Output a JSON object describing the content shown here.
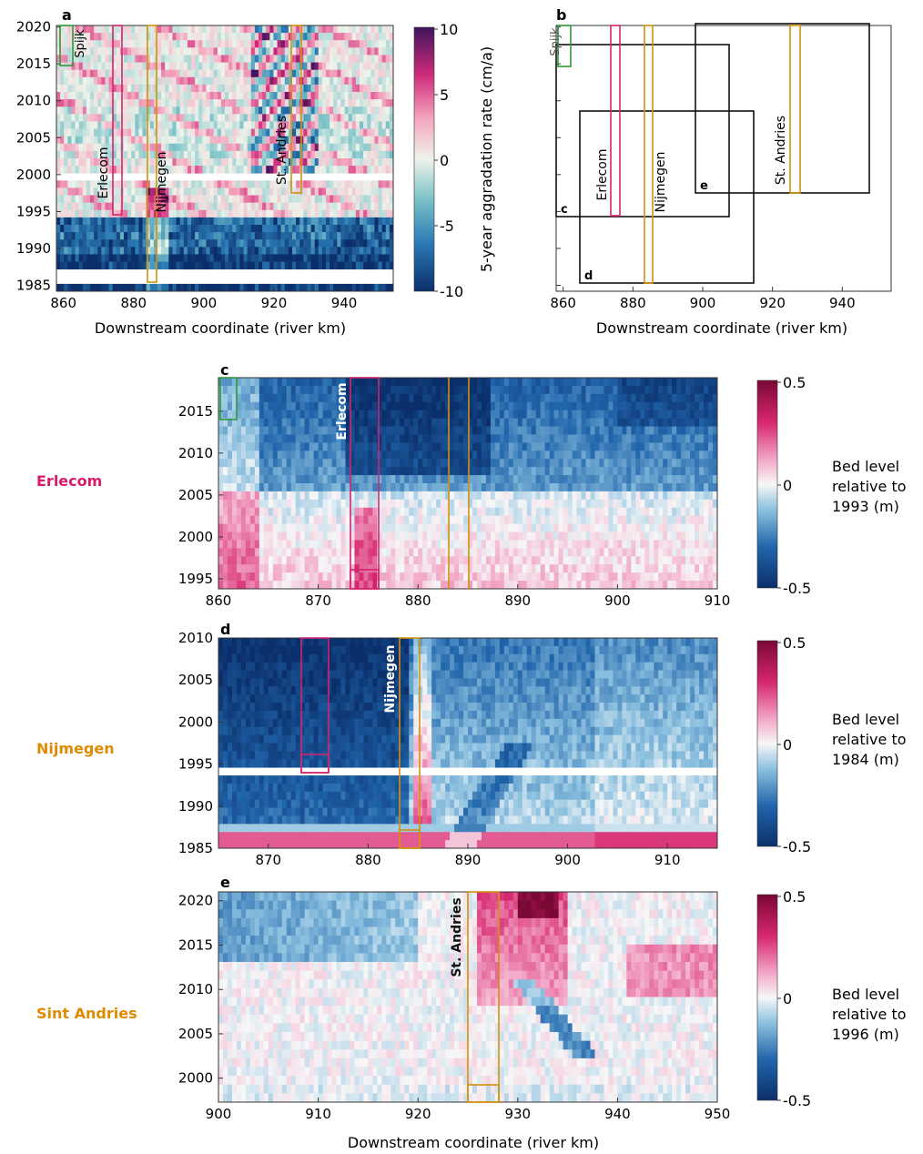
{
  "panel_a": {
    "label": "a",
    "xlabel": "Downstream coordinate (river km)",
    "colorbar_label": "5-year aggradation rate (cm/a)",
    "cbar_ticks": [
      "10",
      "5",
      "0",
      "-5",
      "-10"
    ],
    "xticks": [
      "860",
      "880",
      "900",
      "920",
      "940"
    ],
    "yticks": [
      "2020",
      "2015",
      "2010",
      "2005",
      "2000",
      "1995",
      "1990",
      "1985"
    ],
    "site_spijk": "Spijk",
    "site_erlecom": "Erlecom",
    "site_nijmegen": "Nijmegen",
    "site_st_andries": "St. Andries"
  },
  "panel_b": {
    "label": "b",
    "xlabel": "Downstream coordinate (river km)",
    "xticks": [
      "860",
      "880",
      "900",
      "920",
      "940"
    ],
    "box_c": "c",
    "box_d": "d",
    "box_e": "e",
    "site_spijk": "Spijk",
    "site_erlecom": "Erlecom",
    "site_nijmegen": "Nijmegen",
    "site_st_andries": "St. Andries"
  },
  "panel_c": {
    "label": "c",
    "side_title": "Erlecom",
    "inline_label": "Erlecom",
    "cbar_title": [
      "Bed level",
      "relative to",
      "1993 (m)"
    ],
    "cbar_ticks": [
      "0.5",
      "0",
      "-0.5"
    ],
    "xticks": [
      "860",
      "870",
      "880",
      "890",
      "900",
      "910"
    ],
    "yticks": [
      "2015",
      "2010",
      "2005",
      "2000",
      "1995"
    ]
  },
  "panel_d": {
    "label": "d",
    "side_title": "Nijmegen",
    "inline_label": "Nijmegen",
    "cbar_title": [
      "Bed level",
      "relative to",
      "1984 (m)"
    ],
    "cbar_ticks": [
      "0.5",
      "0",
      "-0.5"
    ],
    "xticks": [
      "870",
      "880",
      "890",
      "900",
      "910"
    ],
    "yticks": [
      "2010",
      "2005",
      "2000",
      "1995",
      "1990",
      "1985"
    ]
  },
  "panel_e": {
    "label": "e",
    "side_title": "Sint Andries",
    "inline_label": "St. Andries",
    "cbar_title": [
      "Bed level",
      "relative to",
      "1996 (m)"
    ],
    "cbar_ticks": [
      "0.5",
      "0",
      "-0.5"
    ],
    "xticks": [
      "900",
      "910",
      "920",
      "930",
      "940",
      "950"
    ],
    "yticks": [
      "2020",
      "2015",
      "2010",
      "2005",
      "2000"
    ],
    "xlabel": "Downstream coordinate (river km)"
  },
  "colors": {
    "erlecom": "#d4246e",
    "nijmegen": "#d4900e",
    "spijk": "#2e9a3a",
    "side_erlecom": "#d81b6a",
    "side_nijmegen": "#e08a00",
    "side_andries": "#e08a00"
  },
  "chart_data": [
    {
      "type": "heatmap",
      "panel": "a",
      "xlim": [
        858,
        954
      ],
      "ylim": [
        1984.5,
        2020.5
      ],
      "colorbar": {
        "min": -10,
        "max": 10,
        "cmap": "diverging blue-white-red"
      },
      "description_values": {
        "early_years_mean": -6,
        "erlecom_site_km": 875,
        "nijmegen_site_km": 884,
        "st_andries_site_km": 926
      }
    },
    {
      "type": "heatmap",
      "panel": "c",
      "xlim": [
        860,
        910
      ],
      "ylim": [
        1994,
        2019
      ],
      "colorbar": {
        "min": -0.5,
        "max": 0.5
      }
    },
    {
      "type": "heatmap",
      "panel": "d",
      "xlim": [
        865,
        915
      ],
      "ylim": [
        1985,
        2010
      ],
      "colorbar": {
        "min": -0.5,
        "max": 0.5
      }
    },
    {
      "type": "heatmap",
      "panel": "e",
      "xlim": [
        900,
        950
      ],
      "ylim": [
        1997,
        2021
      ],
      "colorbar": {
        "min": -0.5,
        "max": 0.5
      }
    }
  ]
}
